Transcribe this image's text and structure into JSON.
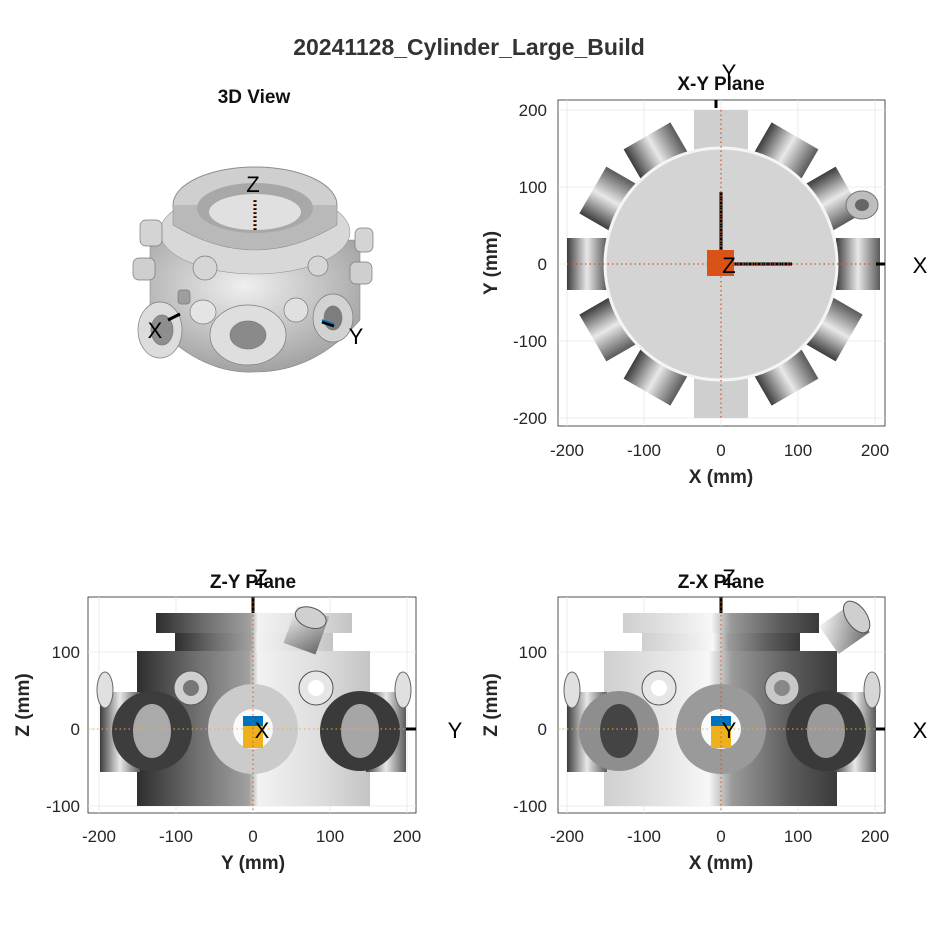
{
  "figure": {
    "title": "20241128_Cylinder_Large_Build"
  },
  "panels": {
    "view3d": {
      "title": "3D View",
      "axis_labels": {
        "x": "X",
        "y": "Y",
        "z": "Z"
      }
    },
    "xy": {
      "title": "X-Y Plane",
      "xlabel": "X (mm)",
      "ylabel": "Y (mm)",
      "xticks": [
        "-200",
        "-100",
        "0",
        "100",
        "200"
      ],
      "yticks": [
        "200",
        "100",
        "0",
        "-100",
        "-200"
      ],
      "axis_labels": {
        "h": "X",
        "v": "Y",
        "center": "Z"
      }
    },
    "zy": {
      "title": "Z-Y Plane",
      "xlabel": "Y (mm)",
      "ylabel": "Z (mm)",
      "xticks": [
        "-200",
        "-100",
        "0",
        "100",
        "200"
      ],
      "yticks": [
        "100",
        "0",
        "-100"
      ],
      "axis_labels": {
        "h": "Y",
        "v": "Z",
        "center": "X"
      }
    },
    "zx": {
      "title": "Z-X Plane",
      "xlabel": "X (mm)",
      "ylabel": "Z (mm)",
      "xticks": [
        "-200",
        "-100",
        "0",
        "100",
        "200"
      ],
      "yticks": [
        "100",
        "0",
        "-100"
      ],
      "axis_labels": {
        "h": "X",
        "v": "Z",
        "center": "Y"
      }
    }
  },
  "colors": {
    "marker_orange": "#d95319",
    "marker_yellow": "#edb120",
    "marker_blue": "#0072bd",
    "axis_black": "#000000",
    "grid": "#e6e6e6"
  }
}
